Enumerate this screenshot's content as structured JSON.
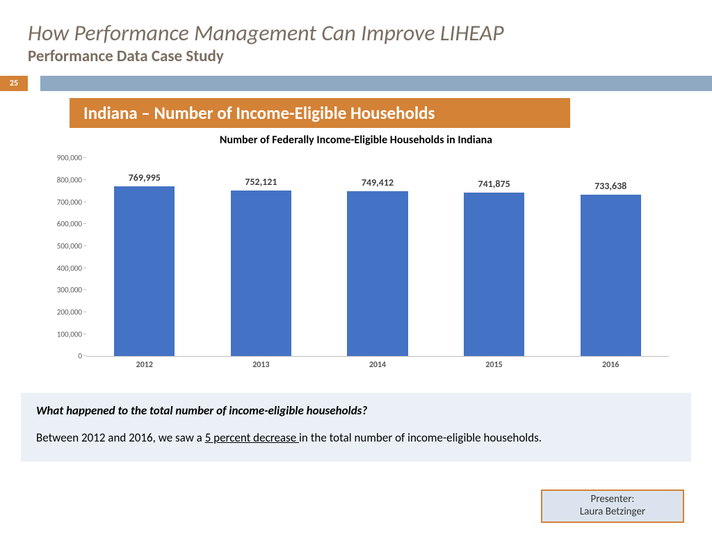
{
  "header": {
    "title": "How Performance Management Can Improve LIHEAP",
    "subtitle": "Performance Data Case Study",
    "slide_number": "25"
  },
  "section_title": "Indiana – Number of Income-Eligible Households",
  "chart": {
    "type": "bar",
    "title": "Number of Federally Income-Eligible Households in Indiana",
    "categories": [
      "2012",
      "2013",
      "2014",
      "2015",
      "2016"
    ],
    "values": [
      769995,
      752121,
      749412,
      741875,
      733638
    ],
    "value_labels": [
      "769,995",
      "752,121",
      "749,412",
      "741,875",
      "733,638"
    ],
    "bar_color": "#4472c4",
    "ylim_max": 900000,
    "ytick_step": 100000,
    "ytick_labels": [
      "0",
      "100,000",
      "200,000",
      "300,000",
      "400,000",
      "500,000",
      "600,000",
      "700,000",
      "800,000",
      "900,000"
    ],
    "val_fontsize": 14,
    "tick_color": "#595959",
    "axis_color": "#bfbfbf",
    "background_color": "#ffffff"
  },
  "note": {
    "question": "What happened to the total number of income-eligible households?",
    "answer_pre": "Between 2012 and 2016, we saw a ",
    "answer_underlined": "5 percent decrease ",
    "answer_post": "in the total number of income-eligible households."
  },
  "presenter": {
    "label": "Presenter:",
    "name": "Laura Betzinger"
  },
  "colors": {
    "accent_orange": "#d38236",
    "band_blue": "#8ea9c1",
    "note_bg": "#eaf0f6",
    "presenter_bg": "#dbe4ee",
    "title_gray": "#7a6e61"
  }
}
